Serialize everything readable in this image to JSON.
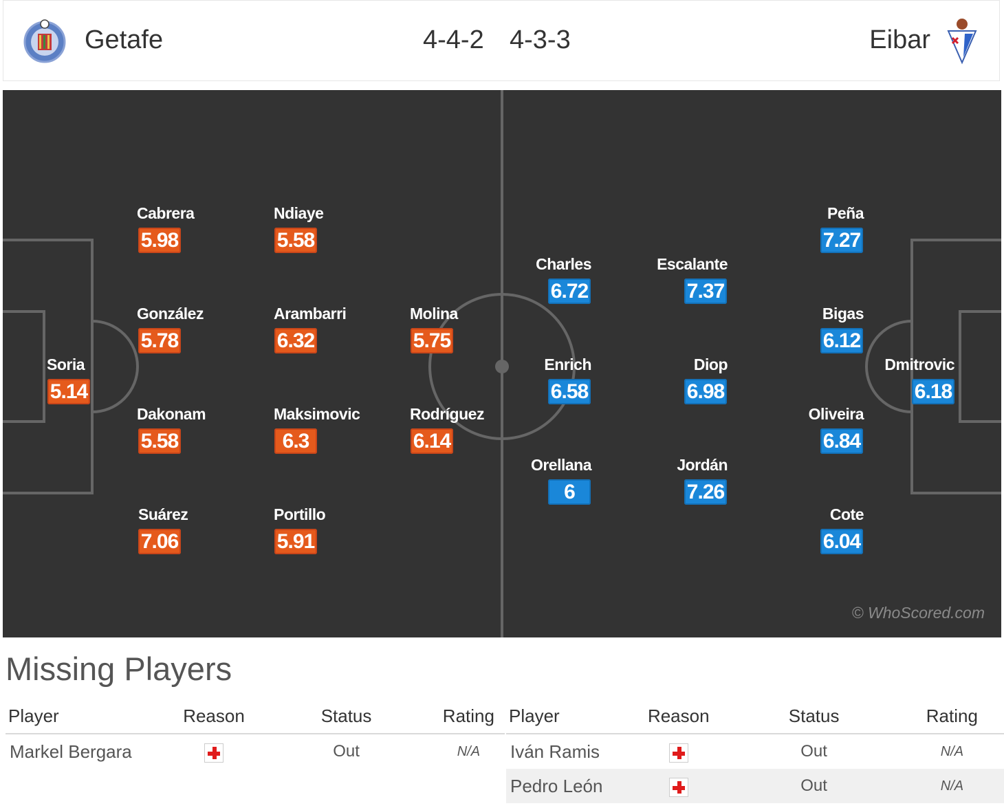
{
  "header": {
    "home_team": "Getafe",
    "home_formation": "4-4-2",
    "away_formation": "4-3-3",
    "away_team": "Eibar"
  },
  "colors": {
    "home_rating": "#e55a1c",
    "away_rating": "#1a87d9",
    "pitch": "#333333"
  },
  "home_players": [
    {
      "name": "Soria",
      "rating": "5.14"
    },
    {
      "name": "Cabrera",
      "rating": "5.98"
    },
    {
      "name": "González",
      "rating": "5.78"
    },
    {
      "name": "Dakonam",
      "rating": "5.58"
    },
    {
      "name": "Suárez",
      "rating": "7.06"
    },
    {
      "name": "Ndiaye",
      "rating": "5.58"
    },
    {
      "name": "Arambarri",
      "rating": "6.32"
    },
    {
      "name": "Maksimovic",
      "rating": "6.3"
    },
    {
      "name": "Portillo",
      "rating": "5.91"
    },
    {
      "name": "Molina",
      "rating": "5.75"
    },
    {
      "name": "Rodríguez",
      "rating": "6.14"
    }
  ],
  "away_players": [
    {
      "name": "Charles",
      "rating": "6.72"
    },
    {
      "name": "Enrich",
      "rating": "6.58"
    },
    {
      "name": "Orellana",
      "rating": "6"
    },
    {
      "name": "Escalante",
      "rating": "7.37"
    },
    {
      "name": "Diop",
      "rating": "6.98"
    },
    {
      "name": "Jordán",
      "rating": "7.26"
    },
    {
      "name": "Peña",
      "rating": "7.27"
    },
    {
      "name": "Bigas",
      "rating": "6.12"
    },
    {
      "name": "Oliveira",
      "rating": "6.84"
    },
    {
      "name": "Cote",
      "rating": "6.04"
    },
    {
      "name": "Dmitrovic",
      "rating": "6.18"
    }
  ],
  "watermark": "© WhoScored.com",
  "missing": {
    "title": "Missing Players",
    "columns": [
      "Player",
      "Reason",
      "Status",
      "Rating"
    ],
    "home": [
      {
        "player": "Markel Bergara",
        "reason": "injury-icon",
        "status": "Out",
        "rating": "N/A"
      }
    ],
    "away": [
      {
        "player": "Iván Ramis",
        "reason": "injury-icon",
        "status": "Out",
        "rating": "N/A"
      },
      {
        "player": "Pedro León",
        "reason": "injury-icon",
        "status": "Out",
        "rating": "N/A"
      }
    ]
  }
}
